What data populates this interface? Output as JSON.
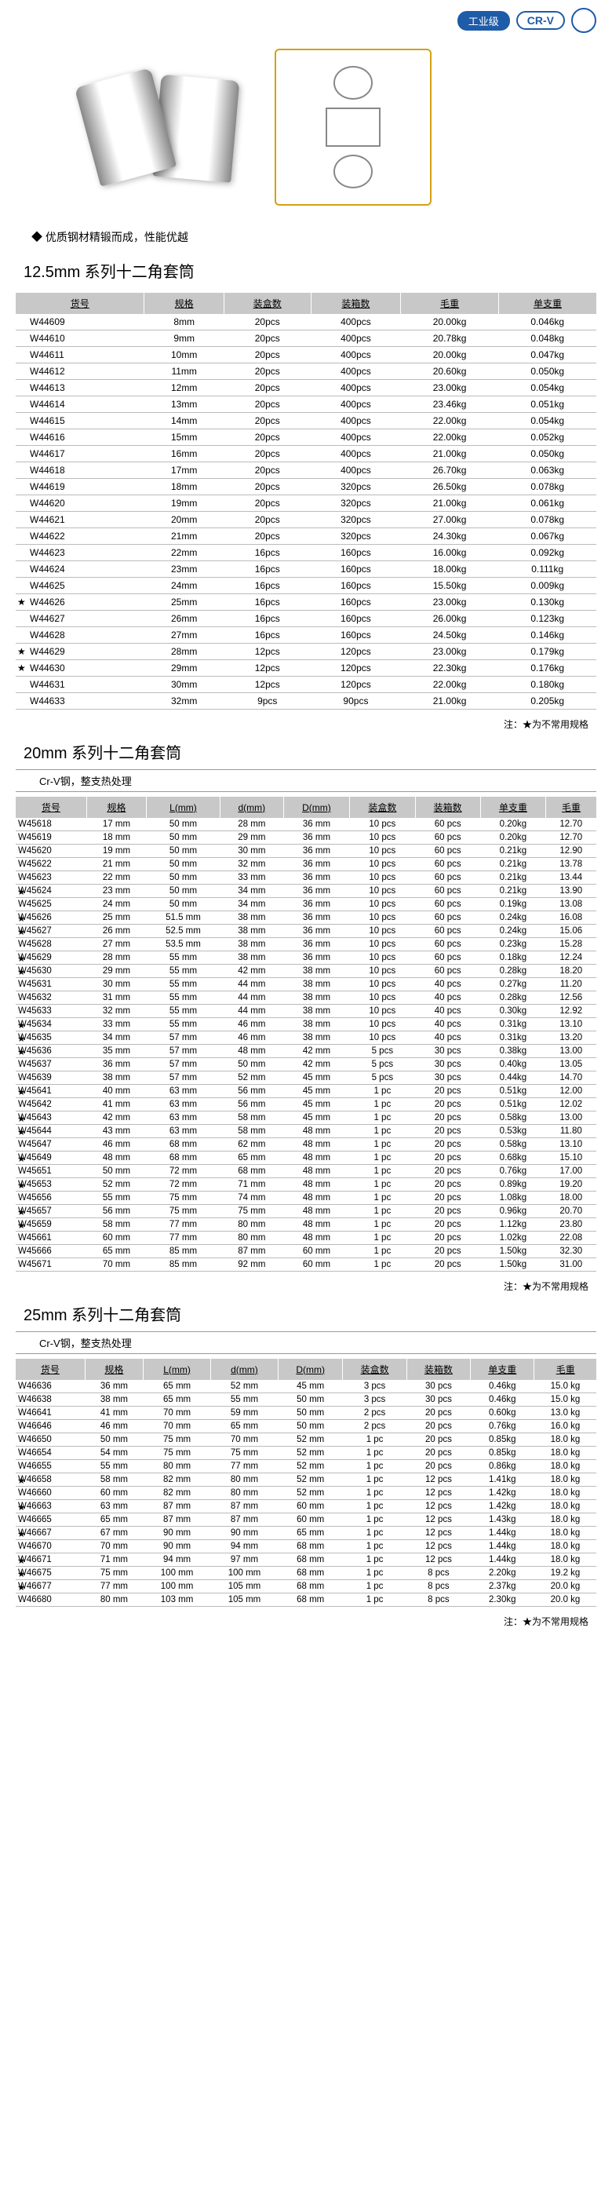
{
  "header": {
    "industrial": "工业级",
    "crv": "CR-V"
  },
  "bullet": "优质钢材精锻而成，性能优越",
  "s1": {
    "title": "12.5mm 系列十二角套筒",
    "cols": [
      "货号",
      "规格",
      "装盒数",
      "装箱数",
      "毛重",
      "单支重"
    ],
    "rows": [
      [
        "W44609",
        "8mm",
        "20pcs",
        "400pcs",
        "20.00kg",
        "0.046kg",
        0
      ],
      [
        "W44610",
        "9mm",
        "20pcs",
        "400pcs",
        "20.78kg",
        "0.048kg",
        0
      ],
      [
        "W44611",
        "10mm",
        "20pcs",
        "400pcs",
        "20.00kg",
        "0.047kg",
        0
      ],
      [
        "W44612",
        "11mm",
        "20pcs",
        "400pcs",
        "20.60kg",
        "0.050kg",
        0
      ],
      [
        "W44613",
        "12mm",
        "20pcs",
        "400pcs",
        "23.00kg",
        "0.054kg",
        0
      ],
      [
        "W44614",
        "13mm",
        "20pcs",
        "400pcs",
        "23.46kg",
        "0.051kg",
        0
      ],
      [
        "W44615",
        "14mm",
        "20pcs",
        "400pcs",
        "22.00kg",
        "0.054kg",
        0
      ],
      [
        "W44616",
        "15mm",
        "20pcs",
        "400pcs",
        "22.00kg",
        "0.052kg",
        0
      ],
      [
        "W44617",
        "16mm",
        "20pcs",
        "400pcs",
        "21.00kg",
        "0.050kg",
        0
      ],
      [
        "W44618",
        "17mm",
        "20pcs",
        "400pcs",
        "26.70kg",
        "0.063kg",
        0
      ],
      [
        "W44619",
        "18mm",
        "20pcs",
        "320pcs",
        "26.50kg",
        "0.078kg",
        0
      ],
      [
        "W44620",
        "19mm",
        "20pcs",
        "320pcs",
        "21.00kg",
        "0.061kg",
        0
      ],
      [
        "W44621",
        "20mm",
        "20pcs",
        "320pcs",
        "27.00kg",
        "0.078kg",
        0
      ],
      [
        "W44622",
        "21mm",
        "20pcs",
        "320pcs",
        "24.30kg",
        "0.067kg",
        0
      ],
      [
        "W44623",
        "22mm",
        "16pcs",
        "160pcs",
        "16.00kg",
        "0.092kg",
        0
      ],
      [
        "W44624",
        "23mm",
        "16pcs",
        "160pcs",
        "18.00kg",
        "0.111kg",
        0
      ],
      [
        "W44625",
        "24mm",
        "16pcs",
        "160pcs",
        "15.50kg",
        "0.009kg",
        0
      ],
      [
        "W44626",
        "25mm",
        "16pcs",
        "160pcs",
        "23.00kg",
        "0.130kg",
        1
      ],
      [
        "W44627",
        "26mm",
        "16pcs",
        "160pcs",
        "26.00kg",
        "0.123kg",
        0
      ],
      [
        "W44628",
        "27mm",
        "16pcs",
        "160pcs",
        "24.50kg",
        "0.146kg",
        0
      ],
      [
        "W44629",
        "28mm",
        "12pcs",
        "120pcs",
        "23.00kg",
        "0.179kg",
        1
      ],
      [
        "W44630",
        "29mm",
        "12pcs",
        "120pcs",
        "22.30kg",
        "0.176kg",
        1
      ],
      [
        "W44631",
        "30mm",
        "12pcs",
        "120pcs",
        "22.00kg",
        "0.180kg",
        0
      ],
      [
        "W44633",
        "32mm",
        "9pcs",
        "90pcs",
        "21.00kg",
        "0.205kg",
        0
      ]
    ]
  },
  "s2": {
    "title": "20mm 系列十二角套筒",
    "sub": "Cr-V钢，整支热处理",
    "cols": [
      "货号",
      "规格",
      "L(mm)",
      "d(mm)",
      "D(mm)",
      "装盒数",
      "装箱数",
      "单支重",
      "毛重"
    ],
    "rows": [
      [
        "W45618",
        "17 mm",
        "50 mm",
        "28 mm",
        "36 mm",
        "10 pcs",
        "60 pcs",
        "0.20kg",
        "12.70",
        0
      ],
      [
        "W45619",
        "18 mm",
        "50 mm",
        "29 mm",
        "36 mm",
        "10 pcs",
        "60 pcs",
        "0.20kg",
        "12.70",
        0
      ],
      [
        "W45620",
        "19 mm",
        "50 mm",
        "30 mm",
        "36 mm",
        "10 pcs",
        "60 pcs",
        "0.21kg",
        "12.90",
        0
      ],
      [
        "W45622",
        "21 mm",
        "50 mm",
        "32 mm",
        "36 mm",
        "10 pcs",
        "60 pcs",
        "0.21kg",
        "13.78",
        0
      ],
      [
        "W45623",
        "22 mm",
        "50 mm",
        "33 mm",
        "36 mm",
        "10 pcs",
        "60 pcs",
        "0.21kg",
        "13.44",
        0
      ],
      [
        "W45624",
        "23 mm",
        "50 mm",
        "34 mm",
        "36 mm",
        "10 pcs",
        "60 pcs",
        "0.21kg",
        "13.90",
        1
      ],
      [
        "W45625",
        "24 mm",
        "50 mm",
        "34 mm",
        "36 mm",
        "10 pcs",
        "60 pcs",
        "0.19kg",
        "13.08",
        0
      ],
      [
        "W45626",
        "25 mm",
        "51.5 mm",
        "38 mm",
        "36 mm",
        "10 pcs",
        "60 pcs",
        "0.24kg",
        "16.08",
        1
      ],
      [
        "W45627",
        "26 mm",
        "52.5 mm",
        "38 mm",
        "36 mm",
        "10 pcs",
        "60 pcs",
        "0.24kg",
        "15.06",
        1
      ],
      [
        "W45628",
        "27 mm",
        "53.5 mm",
        "38 mm",
        "36 mm",
        "10 pcs",
        "60 pcs",
        "0.23kg",
        "15.28",
        0
      ],
      [
        "W45629",
        "28 mm",
        "55 mm",
        "38 mm",
        "36 mm",
        "10 pcs",
        "60 pcs",
        "0.18kg",
        "12.24",
        1
      ],
      [
        "W45630",
        "29 mm",
        "55 mm",
        "42 mm",
        "38 mm",
        "10 pcs",
        "60 pcs",
        "0.28kg",
        "18.20",
        1
      ],
      [
        "W45631",
        "30 mm",
        "55 mm",
        "44 mm",
        "38 mm",
        "10 pcs",
        "40 pcs",
        "0.27kg",
        "11.20",
        0
      ],
      [
        "W45632",
        "31 mm",
        "55 mm",
        "44 mm",
        "38 mm",
        "10 pcs",
        "40 pcs",
        "0.28kg",
        "12.56",
        0
      ],
      [
        "W45633",
        "32 mm",
        "55 mm",
        "44 mm",
        "38 mm",
        "10 pcs",
        "40 pcs",
        "0.30kg",
        "12.92",
        0
      ],
      [
        "W45634",
        "33 mm",
        "55 mm",
        "46 mm",
        "38 mm",
        "10 pcs",
        "40 pcs",
        "0.31kg",
        "13.10",
        1
      ],
      [
        "W45635",
        "34 mm",
        "57 mm",
        "46 mm",
        "38 mm",
        "10 pcs",
        "40 pcs",
        "0.31kg",
        "13.20",
        1
      ],
      [
        "W45636",
        "35 mm",
        "57 mm",
        "48 mm",
        "42 mm",
        "5 pcs",
        "30 pcs",
        "0.38kg",
        "13.00",
        1
      ],
      [
        "W45637",
        "36 mm",
        "57 mm",
        "50 mm",
        "42 mm",
        "5 pcs",
        "30 pcs",
        "0.40kg",
        "13.05",
        0
      ],
      [
        "W45639",
        "38 mm",
        "57 mm",
        "52 mm",
        "45 mm",
        "5 pcs",
        "30 pcs",
        "0.44kg",
        "14.70",
        0
      ],
      [
        "W45641",
        "40 mm",
        "63 mm",
        "56 mm",
        "45 mm",
        "1 pc",
        "20 pcs",
        "0.51kg",
        "12.00",
        1
      ],
      [
        "W45642",
        "41 mm",
        "63 mm",
        "56 mm",
        "45 mm",
        "1 pc",
        "20 pcs",
        "0.51kg",
        "12.02",
        0
      ],
      [
        "W45643",
        "42 mm",
        "63 mm",
        "58 mm",
        "45 mm",
        "1 pc",
        "20 pcs",
        "0.58kg",
        "13.00",
        1
      ],
      [
        "W45644",
        "43 mm",
        "63 mm",
        "58 mm",
        "48 mm",
        "1 pc",
        "20 pcs",
        "0.53kg",
        "11.80",
        1
      ],
      [
        "W45647",
        "46 mm",
        "68 mm",
        "62 mm",
        "48 mm",
        "1 pc",
        "20 pcs",
        "0.58kg",
        "13.10",
        0
      ],
      [
        "W45649",
        "48 mm",
        "68 mm",
        "65 mm",
        "48 mm",
        "1 pc",
        "20 pcs",
        "0.68kg",
        "15.10",
        1
      ],
      [
        "W45651",
        "50 mm",
        "72 mm",
        "68 mm",
        "48 mm",
        "1 pc",
        "20 pcs",
        "0.76kg",
        "17.00",
        0
      ],
      [
        "W45653",
        "52 mm",
        "72 mm",
        "71 mm",
        "48 mm",
        "1 pc",
        "20 pcs",
        "0.89kg",
        "19.20",
        1
      ],
      [
        "W45656",
        "55 mm",
        "75 mm",
        "74 mm",
        "48 mm",
        "1 pc",
        "20 pcs",
        "1.08kg",
        "18.00",
        0
      ],
      [
        "W45657",
        "56 mm",
        "75 mm",
        "75 mm",
        "48 mm",
        "1 pc",
        "20 pcs",
        "0.96kg",
        "20.70",
        1
      ],
      [
        "W45659",
        "58 mm",
        "77 mm",
        "80 mm",
        "48 mm",
        "1 pc",
        "20 pcs",
        "1.12kg",
        "23.80",
        1
      ],
      [
        "W45661",
        "60 mm",
        "77 mm",
        "80 mm",
        "48 mm",
        "1 pc",
        "20 pcs",
        "1.02kg",
        "22.08",
        0
      ],
      [
        "W45666",
        "65 mm",
        "85 mm",
        "87 mm",
        "60 mm",
        "1 pc",
        "20 pcs",
        "1.50kg",
        "32.30",
        0
      ],
      [
        "W45671",
        "70 mm",
        "85 mm",
        "92 mm",
        "60 mm",
        "1 pc",
        "20 pcs",
        "1.50kg",
        "31.00",
        0
      ]
    ]
  },
  "s3": {
    "title": "25mm 系列十二角套筒",
    "sub": "Cr-V钢，整支热处理",
    "cols": [
      "货号",
      "规格",
      "L(mm)",
      "d(mm)",
      "D(mm)",
      "装盒数",
      "装箱数",
      "单支重",
      "毛重"
    ],
    "rows": [
      [
        "W46636",
        "36 mm",
        "65 mm",
        "52 mm",
        "45 mm",
        "3 pcs",
        "30 pcs",
        "0.46kg",
        "15.0 kg",
        0
      ],
      [
        "W46638",
        "38 mm",
        "65 mm",
        "55 mm",
        "50 mm",
        "3 pcs",
        "30 pcs",
        "0.46kg",
        "15.0 kg",
        0
      ],
      [
        "W46641",
        "41 mm",
        "70 mm",
        "59 mm",
        "50 mm",
        "2 pcs",
        "20 pcs",
        "0.60kg",
        "13.0 kg",
        0
      ],
      [
        "W46646",
        "46 mm",
        "70 mm",
        "65 mm",
        "50 mm",
        "2 pcs",
        "20 pcs",
        "0.76kg",
        "16.0 kg",
        0
      ],
      [
        "W46650",
        "50 mm",
        "75 mm",
        "70 mm",
        "52 mm",
        "1 pc",
        "20 pcs",
        "0.85kg",
        "18.0 kg",
        0
      ],
      [
        "W46654",
        "54 mm",
        "75 mm",
        "75 mm",
        "52 mm",
        "1 pc",
        "20 pcs",
        "0.85kg",
        "18.0 kg",
        0
      ],
      [
        "W46655",
        "55 mm",
        "80 mm",
        "77 mm",
        "52 mm",
        "1 pc",
        "20 pcs",
        "0.86kg",
        "18.0 kg",
        0
      ],
      [
        "W46658",
        "58 mm",
        "82 mm",
        "80 mm",
        "52 mm",
        "1 pc",
        "12 pcs",
        "1.41kg",
        "18.0 kg",
        1
      ],
      [
        "W46660",
        "60 mm",
        "82 mm",
        "80 mm",
        "52 mm",
        "1 pc",
        "12 pcs",
        "1.42kg",
        "18.0 kg",
        0
      ],
      [
        "W46663",
        "63 mm",
        "87 mm",
        "87 mm",
        "60 mm",
        "1 pc",
        "12 pcs",
        "1.42kg",
        "18.0 kg",
        1
      ],
      [
        "W46665",
        "65 mm",
        "87 mm",
        "87 mm",
        "60 mm",
        "1 pc",
        "12 pcs",
        "1.43kg",
        "18.0 kg",
        0
      ],
      [
        "W46667",
        "67 mm",
        "90 mm",
        "90 mm",
        "65 mm",
        "1 pc",
        "12 pcs",
        "1.44kg",
        "18.0 kg",
        1
      ],
      [
        "W46670",
        "70 mm",
        "90 mm",
        "94 mm",
        "68 mm",
        "1 pc",
        "12 pcs",
        "1.44kg",
        "18.0 kg",
        0
      ],
      [
        "W46671",
        "71 mm",
        "94 mm",
        "97 mm",
        "68 mm",
        "1 pc",
        "12 pcs",
        "1.44kg",
        "18.0 kg",
        1
      ],
      [
        "W46675",
        "75 mm",
        "100 mm",
        "100 mm",
        "68 mm",
        "1 pc",
        "8 pcs",
        "2.20kg",
        "19.2 kg",
        1
      ],
      [
        "W46677",
        "77 mm",
        "100 mm",
        "105 mm",
        "68 mm",
        "1 pc",
        "8 pcs",
        "2.37kg",
        "20.0 kg",
        1
      ],
      [
        "W46680",
        "80 mm",
        "103 mm",
        "105 mm",
        "68 mm",
        "1 pc",
        "8 pcs",
        "2.30kg",
        "20.0 kg",
        0
      ]
    ]
  },
  "note": "注：★为不常用规格"
}
